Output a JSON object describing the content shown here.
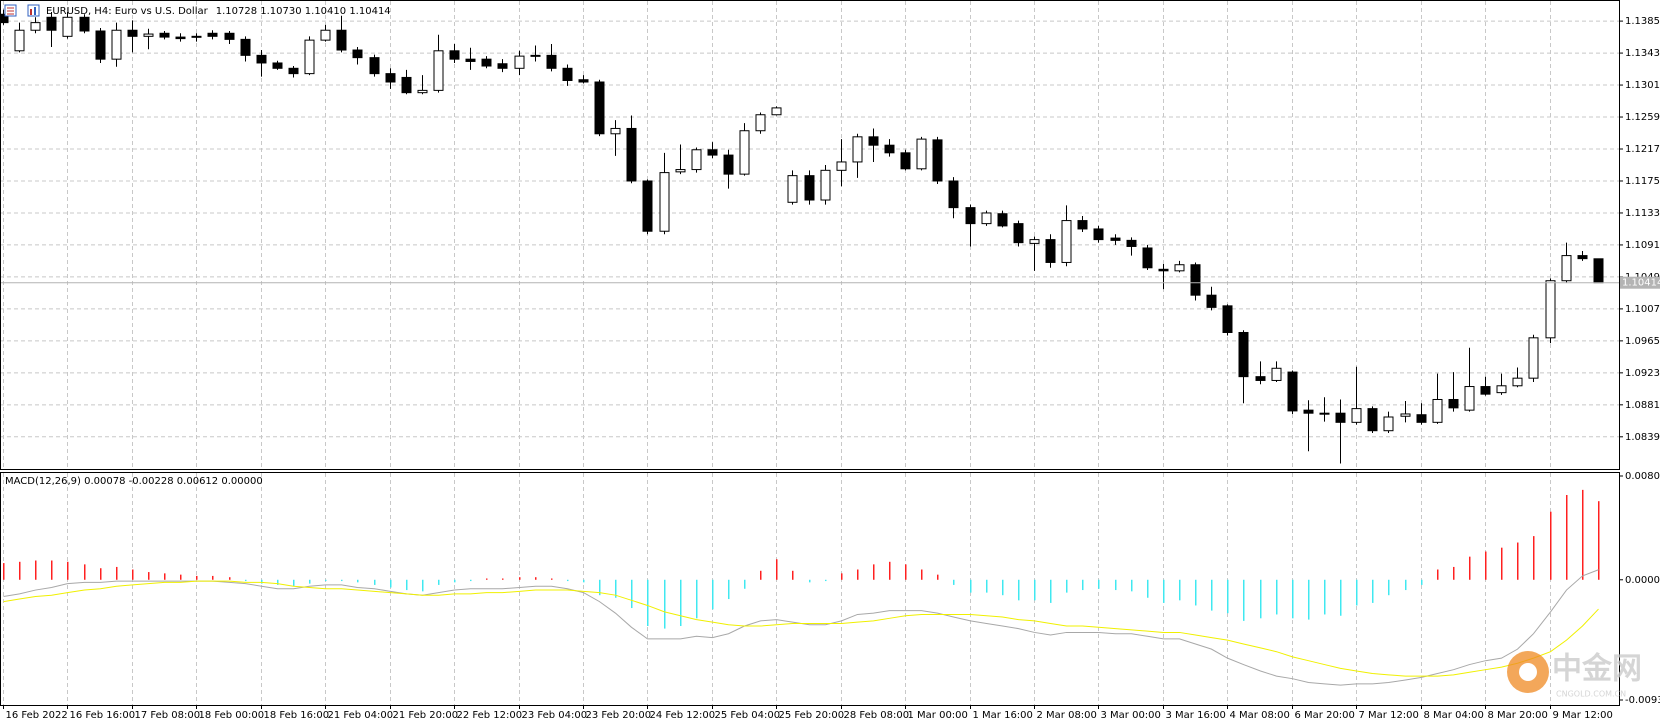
{
  "chart_data": [
    {
      "type": "candlestick",
      "title": "EURUSD, H4:  Euro vs U.S. Dollar",
      "title_values": "1.10728 1.10730 1.10410 1.10414",
      "open": [
        1.1394,
        1.1346,
        1.1373,
        1.139,
        1.1365,
        1.139,
        1.1372,
        1.1335,
        1.1373,
        1.1365,
        1.1369,
        1.1364,
        1.1364,
        1.1369,
        1.1369,
        1.1361,
        1.134,
        1.133,
        1.1323,
        1.1316,
        1.136,
        1.1373,
        1.1347,
        1.1337,
        1.1316,
        1.1311,
        1.1291,
        1.1294,
        1.1346,
        1.1335,
        1.1335,
        1.1329,
        1.1323,
        1.1339,
        1.134,
        1.1323,
        1.1308,
        1.1305,
        1.1237,
        1.1244,
        1.1175,
        1.1109,
        1.1187,
        1.119,
        1.1216,
        1.1209,
        1.1184,
        1.1241,
        1.1262,
        1.1147,
        1.1182,
        1.115,
        1.1189,
        1.12,
        1.1233,
        1.1222,
        1.1212,
        1.1191,
        1.1229,
        1.1175,
        1.114,
        1.1119,
        1.1132,
        1.1119,
        1.1093,
        1.1098,
        1.1068,
        1.1123,
        1.1112,
        1.11,
        1.1097,
        1.1087,
        1.1059,
        1.1057,
        1.1065,
        1.1025,
        1.1011,
        1.0976,
        1.0918,
        1.0913,
        1.0924,
        1.0874,
        1.087,
        1.087,
        1.0858,
        1.0876,
        1.0847,
        1.0866,
        1.0868,
        1.0858,
        1.0888,
        1.0874,
        1.0905,
        1.0897,
        1.0906,
        1.0916,
        1.0969,
        1.1044,
        1.1077,
        1.10728
      ],
      "high": [
        1.14,
        1.1383,
        1.139,
        1.1397,
        1.1397,
        1.1394,
        1.1376,
        1.1383,
        1.1386,
        1.1375,
        1.1372,
        1.1369,
        1.1369,
        1.1373,
        1.1372,
        1.1365,
        1.1347,
        1.1333,
        1.1326,
        1.1365,
        1.138,
        1.1392,
        1.1351,
        1.1341,
        1.1323,
        1.1321,
        1.1314,
        1.1367,
        1.1355,
        1.135,
        1.1339,
        1.1335,
        1.1346,
        1.1353,
        1.1355,
        1.1328,
        1.1314,
        1.1308,
        1.1255,
        1.1261,
        1.1177,
        1.1212,
        1.1223,
        1.1219,
        1.1226,
        1.1216,
        1.1251,
        1.1265,
        1.1273,
        1.1189,
        1.1189,
        1.1196,
        1.123,
        1.1237,
        1.1244,
        1.123,
        1.1216,
        1.1233,
        1.1233,
        1.118,
        1.1144,
        1.1136,
        1.1136,
        1.1123,
        1.1102,
        1.1105,
        1.1143,
        1.1129,
        1.1116,
        1.1105,
        1.1101,
        1.1091,
        1.1066,
        1.107,
        1.1068,
        1.1036,
        1.1013,
        1.0979,
        1.0938,
        1.0938,
        1.0926,
        1.0887,
        1.0891,
        1.0888,
        1.0931,
        1.0879,
        1.0872,
        1.0886,
        1.0883,
        1.0922,
        1.0924,
        1.0956,
        1.0918,
        1.0922,
        1.093,
        1.0973,
        1.1047,
        1.1094,
        1.1083,
        1.1073
      ],
      "low": [
        1.138,
        1.1344,
        1.1369,
        1.1351,
        1.1362,
        1.1369,
        1.133,
        1.1325,
        1.1344,
        1.1348,
        1.1361,
        1.1358,
        1.1358,
        1.1361,
        1.1355,
        1.1332,
        1.1312,
        1.1321,
        1.1311,
        1.1314,
        1.1358,
        1.1344,
        1.1328,
        1.1312,
        1.1296,
        1.1289,
        1.1289,
        1.1291,
        1.133,
        1.1321,
        1.1323,
        1.1318,
        1.1314,
        1.1332,
        1.1319,
        1.13,
        1.1303,
        1.1234,
        1.1208,
        1.1172,
        1.1105,
        1.1105,
        1.1184,
        1.1186,
        1.1205,
        1.1165,
        1.1182,
        1.1237,
        1.1261,
        1.1144,
        1.1144,
        1.1144,
        1.1168,
        1.1179,
        1.12,
        1.1207,
        1.1189,
        1.1189,
        1.1171,
        1.1126,
        1.1089,
        1.1116,
        1.1114,
        1.1089,
        1.1057,
        1.1061,
        1.1063,
        1.1108,
        1.1094,
        1.1091,
        1.1077,
        1.1058,
        1.1033,
        1.1055,
        1.1018,
        1.1005,
        1.0972,
        1.0883,
        1.0908,
        1.0911,
        1.0869,
        1.082,
        1.0859,
        1.0804,
        1.0855,
        1.0844,
        1.0844,
        1.0858,
        1.0855,
        1.0856,
        1.0872,
        1.0872,
        1.0893,
        1.0894,
        1.0904,
        1.0911,
        1.0962,
        1.1041,
        1.107,
        1.1041
      ],
      "close": [
        1.1383,
        1.1373,
        1.1383,
        1.1373,
        1.139,
        1.1372,
        1.1335,
        1.1373,
        1.1365,
        1.1368,
        1.1364,
        1.1362,
        1.1365,
        1.1365,
        1.1361,
        1.134,
        1.133,
        1.1323,
        1.1316,
        1.136,
        1.1373,
        1.1347,
        1.1337,
        1.1316,
        1.1305,
        1.1291,
        1.1294,
        1.1346,
        1.1335,
        1.1332,
        1.1326,
        1.1323,
        1.1339,
        1.134,
        1.1323,
        1.1307,
        1.1305,
        1.1237,
        1.1244,
        1.1175,
        1.1109,
        1.1186,
        1.119,
        1.1216,
        1.1209,
        1.1184,
        1.1241,
        1.1262,
        1.1271,
        1.1182,
        1.115,
        1.1189,
        1.12,
        1.1233,
        1.1222,
        1.1212,
        1.1191,
        1.123,
        1.1175,
        1.114,
        1.1119,
        1.1133,
        1.1116,
        1.1094,
        1.1098,
        1.1068,
        1.1123,
        1.1112,
        1.1098,
        1.1097,
        1.1089,
        1.1061,
        1.1057,
        1.1065,
        1.1025,
        1.1009,
        1.0976,
        1.0918,
        1.0913,
        1.0929,
        1.0873,
        1.087,
        1.0869,
        1.0858,
        1.0876,
        1.0847,
        1.0865,
        1.0869,
        1.0858,
        1.0888,
        1.0877,
        1.0905,
        1.0895,
        1.0906,
        1.0916,
        1.0969,
        1.1044,
        1.1077,
        1.1073,
        1.10414
      ],
      "bull_color": "#ffffff",
      "bear_color": "#000000",
      "ylim": [
        1.07967,
        1.14114
      ],
      "yticks": [
        {
          "value": 1.1385,
          "label": "1.13850"
        },
        {
          "value": 1.1343,
          "label": "1.13430"
        },
        {
          "value": 1.1301,
          "label": "1.13010"
        },
        {
          "value": 1.1259,
          "label": "1.12590"
        },
        {
          "value": 1.1217,
          "label": "1.12170"
        },
        {
          "value": 1.1175,
          "label": "1.11750"
        },
        {
          "value": 1.1133,
          "label": "1.11330"
        },
        {
          "value": 1.1091,
          "label": "1.10910"
        },
        {
          "value": 1.1049,
          "label": "1.10490"
        },
        {
          "value": 1.1007,
          "label": "1.10070"
        },
        {
          "value": 1.0965,
          "label": "1.09650"
        },
        {
          "value": 1.0923,
          "label": "1.09230"
        },
        {
          "value": 1.0881,
          "label": "1.08810"
        },
        {
          "value": 1.0839,
          "label": "1.08390"
        }
      ],
      "grid": "both",
      "price_line": 1.10414
    },
    {
      "type": "macd",
      "title": "MACD(12,26,9) 0.00078 -0.00228 0.00612 0.00000",
      "categories": [
        "16 Feb 2022",
        null,
        null,
        null,
        "16 Feb 16:00",
        null,
        null,
        null,
        "17 Feb 08:00",
        null,
        null,
        null,
        "18 Feb 00:00",
        null,
        null,
        null,
        "18 Feb 16:00",
        null,
        null,
        null,
        "21 Feb 04:00",
        null,
        null,
        null,
        "21 Feb 20:00",
        null,
        null,
        null,
        "22 Feb 12:00",
        null,
        null,
        null,
        "23 Feb 04:00",
        null,
        null,
        null,
        "23 Feb 20:00",
        null,
        null,
        null,
        "24 Feb 12:00",
        null,
        null,
        null,
        "25 Feb 04:00",
        null,
        null,
        null,
        "25 Feb 20:00",
        null,
        null,
        null,
        "28 Feb 08:00",
        null,
        null,
        null,
        "1 Mar 00:00",
        null,
        null,
        null,
        "1 Mar 16:00",
        null,
        null,
        null,
        "2 Mar 08:00",
        null,
        null,
        null,
        "3 Mar 00:00",
        null,
        null,
        null,
        "3 Mar 16:00",
        null,
        null,
        null,
        "4 Mar 08:00",
        null,
        null,
        null,
        "6 Mar 20:00",
        null,
        null,
        null,
        "7 Mar 12:00",
        null,
        null,
        null,
        "8 Mar 04:00",
        null,
        null,
        null,
        "8 Mar 20:00",
        null,
        null,
        null,
        "9 Mar 12:00",
        null,
        null,
        null
      ],
      "histogram": {
        "positive_color": "#ff2020",
        "negative_color": "#40e8f0",
        "values": [
          0.0013,
          0.0014,
          0.0015,
          0.0015,
          0.0014,
          0.0012,
          0.0009,
          0.001,
          0.0008,
          0.0006,
          0.0005,
          0.0004,
          0.0003,
          0.0003,
          0.0002,
          -0.0001,
          -0.0003,
          -0.0004,
          -0.0005,
          -0.0003,
          -0.0001,
          -0.0001,
          -0.0002,
          -0.0004,
          -0.0006,
          -0.0008,
          -0.0009,
          -0.0004,
          -0.0002,
          -0.0001,
          0.0001,
          0.0001,
          0.0002,
          0.0002,
          0.0001,
          -0.0001,
          -0.0002,
          -0.0012,
          -0.0014,
          -0.0022,
          -0.0036,
          -0.0038,
          -0.0036,
          -0.003,
          -0.0023,
          -0.0015,
          -0.0007,
          0.0007,
          0.0016,
          0.0007,
          -0.0002,
          -0.0001,
          0.0005,
          0.0008,
          0.0012,
          0.0014,
          0.0012,
          0.0008,
          0.0004,
          -0.0004,
          -0.001,
          -0.001,
          -0.0012,
          -0.0016,
          -0.0016,
          -0.0018,
          -0.001,
          -0.0008,
          -0.0007,
          -0.0008,
          -0.0009,
          -0.0014,
          -0.0018,
          -0.0016,
          -0.002,
          -0.0024,
          -0.0026,
          -0.0032,
          -0.003,
          -0.0027,
          -0.003,
          -0.0031,
          -0.0027,
          -0.0028,
          -0.002,
          -0.0018,
          -0.0012,
          -0.0008,
          -0.0004,
          0.0008,
          0.001,
          0.0018,
          0.0022,
          0.0025,
          0.0029,
          0.0034,
          0.0053,
          0.0066,
          0.007,
          0.00612
        ]
      },
      "lines": [
        {
          "color": "#a8a8a8",
          "values": [
            -0.0013,
            -0.0011,
            -0.0008,
            -0.0006,
            -0.0003,
            -0.0002,
            -0.0002,
            -0.0001,
            -0.0001,
            -0.0001,
            -0.0001,
            -0.0001,
            -0.0001,
            -0.0001,
            -0.0002,
            -0.0003,
            -0.0005,
            -0.0007,
            -0.0007,
            -0.0005,
            -0.0004,
            -0.0004,
            -0.0006,
            -0.0007,
            -0.0009,
            -0.0011,
            -0.0012,
            -0.001,
            -0.0008,
            -0.0007,
            -0.0007,
            -0.0007,
            -0.0006,
            -0.0005,
            -0.0005,
            -0.0007,
            -0.001,
            -0.0017,
            -0.0026,
            -0.0037,
            -0.0046,
            -0.0046,
            -0.0046,
            -0.0044,
            -0.0045,
            -0.0042,
            -0.0036,
            -0.0032,
            -0.0031,
            -0.0033,
            -0.0035,
            -0.0035,
            -0.0032,
            -0.0027,
            -0.0026,
            -0.0024,
            -0.0024,
            -0.0024,
            -0.0026,
            -0.0029,
            -0.0032,
            -0.0034,
            -0.0036,
            -0.0038,
            -0.0041,
            -0.0043,
            -0.0041,
            -0.0041,
            -0.0041,
            -0.0042,
            -0.0042,
            -0.0044,
            -0.0046,
            -0.0046,
            -0.005,
            -0.0054,
            -0.0061,
            -0.0066,
            -0.0071,
            -0.0075,
            -0.0077,
            -0.008,
            -0.0081,
            -0.0082,
            -0.0081,
            -0.0081,
            -0.008,
            -0.0078,
            -0.0076,
            -0.0073,
            -0.007,
            -0.0066,
            -0.0063,
            -0.0061,
            -0.0054,
            -0.0042,
            -0.0025,
            -0.0008,
            0.0003,
            0.00078
          ]
        },
        {
          "color": "#f0f000",
          "values": [
            -0.0017,
            -0.0015,
            -0.0013,
            -0.0012,
            -0.001,
            -0.0008,
            -0.0007,
            -0.0005,
            -0.0004,
            -0.0003,
            -0.0002,
            -0.0002,
            -0.0001,
            -0.0001,
            -0.0001,
            -0.0002,
            -0.0002,
            -0.0003,
            -0.0005,
            -0.0006,
            -0.0007,
            -0.0007,
            -0.0008,
            -0.0009,
            -0.001,
            -0.0011,
            -0.0012,
            -0.0012,
            -0.0011,
            -0.0011,
            -0.001,
            -0.001,
            -0.0009,
            -0.0008,
            -0.0008,
            -0.0008,
            -0.0009,
            -0.001,
            -0.0012,
            -0.0016,
            -0.002,
            -0.0025,
            -0.0028,
            -0.0031,
            -0.0033,
            -0.0035,
            -0.0036,
            -0.0036,
            -0.0035,
            -0.0034,
            -0.0034,
            -0.0034,
            -0.0034,
            -0.0033,
            -0.0032,
            -0.003,
            -0.0028,
            -0.0027,
            -0.0027,
            -0.0027,
            -0.0027,
            -0.0028,
            -0.0029,
            -0.0031,
            -0.0032,
            -0.0034,
            -0.0036,
            -0.0036,
            -0.0037,
            -0.0038,
            -0.0039,
            -0.004,
            -0.0041,
            -0.0041,
            -0.0043,
            -0.0045,
            -0.0047,
            -0.005,
            -0.0053,
            -0.0056,
            -0.006,
            -0.0063,
            -0.0066,
            -0.0069,
            -0.0071,
            -0.0073,
            -0.0074,
            -0.0075,
            -0.0075,
            -0.0075,
            -0.0074,
            -0.0072,
            -0.007,
            -0.0068,
            -0.0065,
            -0.0061,
            -0.0056,
            -0.0047,
            -0.0036,
            -0.00228
          ]
        }
      ],
      "ylim": [
        -0.00936,
        0.00808
      ],
      "yticks": [
        {
          "value": 0.00808,
          "label": "0.00808"
        },
        {
          "value": 0,
          "label": "0.00000"
        },
        {
          "value": -0.00936,
          "label": "-0.00936"
        }
      ],
      "grid": "x"
    }
  ],
  "watermark": {
    "title": "中金网",
    "subtitle": "CNGOLD.COM.CN"
  }
}
